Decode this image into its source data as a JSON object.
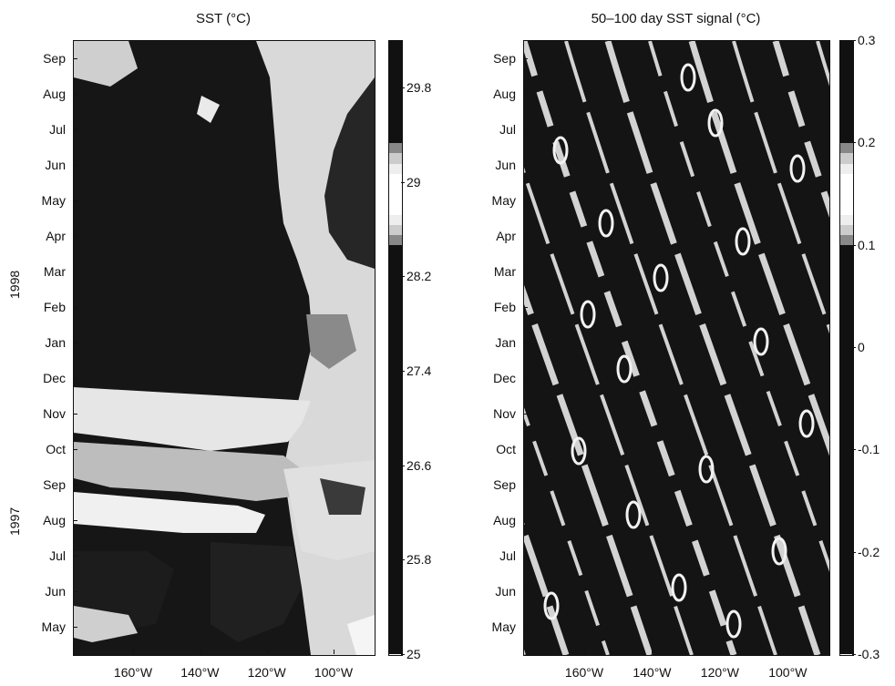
{
  "chart_data": [
    {
      "type": "heatmap",
      "title": "SST (°C)",
      "x_tick_labels": [
        "160°W",
        "140°W",
        "120°W",
        "100°W"
      ],
      "x_tick_values": [
        -160,
        -140,
        -120,
        -100
      ],
      "xlim": [
        -178,
        -88
      ],
      "y_tick_labels": [
        "May",
        "Jun",
        "Jul",
        "Aug",
        "Sep",
        "Oct",
        "Nov",
        "Dec",
        "Jan",
        "Feb",
        "Mar",
        "Apr",
        "May",
        "Jun",
        "Jul",
        "Aug",
        "Sep"
      ],
      "y_tick_dates": [
        "1997-05",
        "1997-06",
        "1997-07",
        "1997-08",
        "1997-09",
        "1997-10",
        "1997-11",
        "1997-12",
        "1998-01",
        "1998-02",
        "1998-03",
        "1998-04",
        "1998-05",
        "1998-06",
        "1998-07",
        "1998-08",
        "1998-09"
      ],
      "year_labels": [
        "1997",
        "1998"
      ],
      "colorbar": {
        "range": [
          25,
          30.2
        ],
        "tick_labels": [
          "25",
          "25.8",
          "26.6",
          "27.4",
          "28.2",
          "29",
          "29.8"
        ],
        "tick_values": [
          25,
          25.8,
          26.6,
          27.4,
          28.2,
          29,
          29.8
        ]
      }
    },
    {
      "type": "heatmap",
      "title": "50–100 day SST signal (°C)",
      "x_tick_labels": [
        "160°W",
        "140°W",
        "120°W",
        "100°W"
      ],
      "x_tick_values": [
        -160,
        -140,
        -120,
        -100
      ],
      "xlim": [
        -178,
        -88
      ],
      "y_tick_labels": [
        "May",
        "Jun",
        "Jul",
        "Aug",
        "Sep",
        "Oct",
        "Nov",
        "Dec",
        "Jan",
        "Feb",
        "Mar",
        "Apr",
        "May",
        "Jun",
        "Jul",
        "Aug",
        "Sep"
      ],
      "y_tick_dates": [
        "1997-05",
        "1997-06",
        "1997-07",
        "1997-08",
        "1997-09",
        "1997-10",
        "1997-11",
        "1997-12",
        "1998-01",
        "1998-02",
        "1998-03",
        "1998-04",
        "1998-05",
        "1998-06",
        "1998-07",
        "1998-08",
        "1998-09"
      ],
      "colorbar": {
        "range": [
          -0.3,
          0.3
        ],
        "tick_labels": [
          "-0.3",
          "-0.2",
          "-0.1",
          "0",
          "0.1",
          "0.2",
          "0.3"
        ],
        "tick_values": [
          -0.3,
          -0.2,
          -0.1,
          0,
          0.1,
          0.2,
          0.3
        ]
      }
    }
  ]
}
